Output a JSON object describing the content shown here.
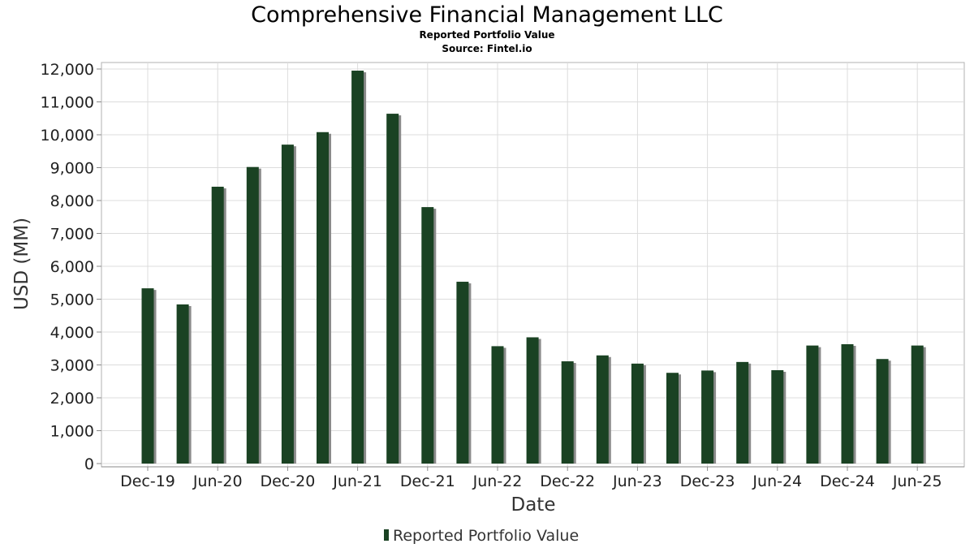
{
  "chart_data": {
    "type": "bar",
    "title": "Comprehensive Financial Management LLC",
    "subtitle": "Reported Portfolio Value",
    "source": "Source: Fintel.io",
    "xlabel": "Date",
    "ylabel": "USD (MM)",
    "ylim": [
      0,
      12400
    ],
    "yticks": [
      0,
      1000,
      2000,
      3000,
      4000,
      5000,
      6000,
      7000,
      8000,
      9000,
      10000,
      11000,
      12000
    ],
    "ytick_labels": [
      "0",
      "1,000",
      "2,000",
      "3,000",
      "4,000",
      "5,000",
      "6,000",
      "7,000",
      "8,000",
      "9,000",
      "10,000",
      "11,000",
      "12,000"
    ],
    "xtick_labels": [
      "Dec-19",
      "Jun-20",
      "Dec-20",
      "Jun-21",
      "Dec-21",
      "Jun-22",
      "Dec-22",
      "Jun-23",
      "Dec-23",
      "Jun-24",
      "Dec-24",
      "Jun-25"
    ],
    "grid": true,
    "legend_position": "bottom",
    "categories": [
      "Dec-19",
      "Mar-20",
      "Jun-20",
      "Sep-20",
      "Dec-20",
      "Mar-21",
      "Jun-21",
      "Sep-21",
      "Dec-21",
      "Mar-22",
      "Jun-22",
      "Sep-22",
      "Dec-22",
      "Mar-23",
      "Jun-23",
      "Sep-23",
      "Dec-23",
      "Mar-24",
      "Jun-24",
      "Sep-24",
      "Dec-24",
      "Mar-25",
      "Jun-25"
    ],
    "series": [
      {
        "name": "Reported Portfolio Value",
        "color": "#1a4223",
        "shadow_color": "#8a8a8a",
        "values": [
          5330,
          4840,
          8420,
          9020,
          9700,
          10080,
          11950,
          10640,
          7800,
          5530,
          3570,
          3840,
          3110,
          3290,
          3040,
          2760,
          2830,
          3090,
          2840,
          3590,
          3630,
          3180,
          3590
        ]
      }
    ]
  }
}
